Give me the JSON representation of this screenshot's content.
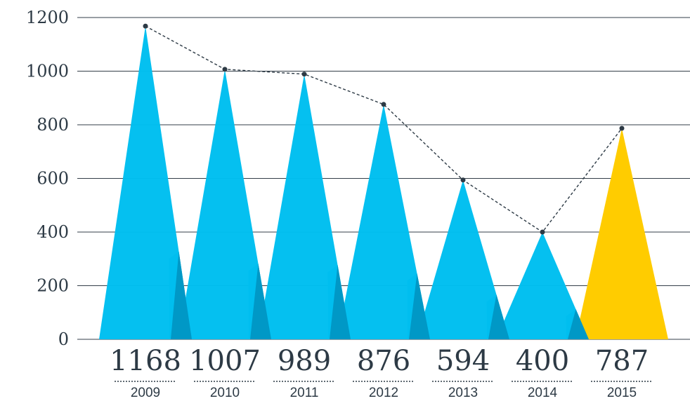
{
  "chart_data": {
    "type": "bar",
    "bar_shape": "triangle",
    "categories": [
      "2009",
      "2010",
      "2011",
      "2012",
      "2013",
      "2014",
      "2015"
    ],
    "values": [
      1168,
      1007,
      989,
      876,
      594,
      400,
      787
    ],
    "value_labels": [
      "1168",
      "1007",
      "989",
      "876",
      "594",
      "400",
      "787"
    ],
    "highlight_index": 6,
    "ylim": [
      0,
      1200
    ],
    "yticks": [
      0,
      200,
      400,
      600,
      800,
      1000,
      1200
    ],
    "grid": true,
    "trend_line": "dashed",
    "title": "",
    "xlabel": "",
    "ylabel": ""
  },
  "colors": {
    "bar": "#00bff0",
    "bar_shadow": "#0098c6",
    "highlight": "#ffcc00",
    "grid": "#333e48",
    "text": "#2d3a45",
    "trend": "#2d3a45"
  }
}
